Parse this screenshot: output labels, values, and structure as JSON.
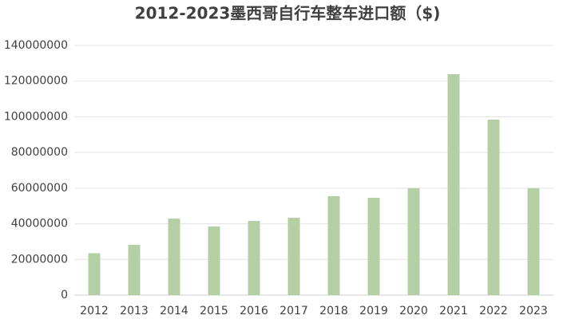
{
  "chart_data": {
    "type": "bar",
    "title": "2012-2023墨西哥自行车整车进口额（$)",
    "categories": [
      "2012",
      "2013",
      "2014",
      "2015",
      "2016",
      "2017",
      "2018",
      "2019",
      "2020",
      "2021",
      "2022",
      "2023"
    ],
    "values": [
      23500000,
      28200000,
      42900000,
      38500000,
      41600000,
      43400000,
      55500000,
      54600000,
      59900000,
      123900000,
      98400000,
      59900000
    ],
    "color": "#b4cfa4",
    "ylim": [
      0,
      140000000
    ],
    "yticks": [
      0,
      20000000,
      40000000,
      60000000,
      80000000,
      100000000,
      120000000,
      140000000
    ],
    "grid": true
  }
}
